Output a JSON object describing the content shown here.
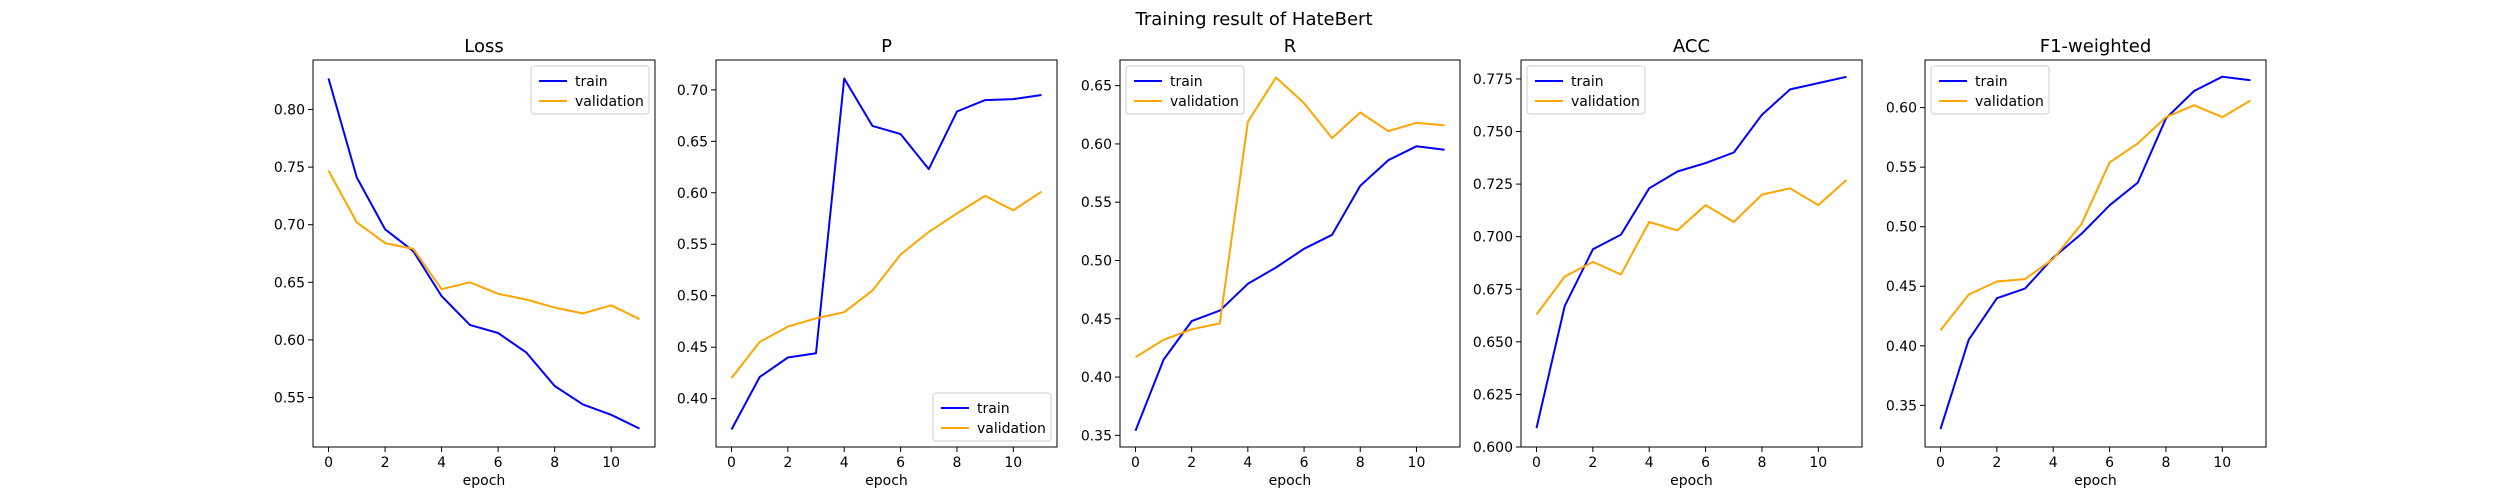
{
  "figure": {
    "title": "Training result of HateBert"
  },
  "colors": {
    "train": "#0000ff",
    "validation": "#ffa500"
  },
  "chart_data": [
    {
      "type": "line",
      "title": "Loss",
      "xlabel": "epoch",
      "ylabel": "",
      "x": [
        0,
        1,
        2,
        3,
        4,
        5,
        6,
        7,
        8,
        9,
        10,
        11
      ],
      "xlim": [
        -0.55,
        11.55
      ],
      "xticks": [
        "0",
        "2",
        "4",
        "6",
        "8",
        "10"
      ],
      "ylim": [
        0.507,
        0.843
      ],
      "yticks": [
        "0.55",
        "0.60",
        "0.65",
        "0.70",
        "0.75",
        "0.80"
      ],
      "legend": "top-right",
      "series": [
        {
          "name": "train",
          "values": [
            0.827,
            0.741,
            0.696,
            0.677,
            0.638,
            0.613,
            0.606,
            0.589,
            0.56,
            0.544,
            0.535,
            0.523
          ]
        },
        {
          "name": "validation",
          "values": [
            0.747,
            0.702,
            0.684,
            0.679,
            0.644,
            0.65,
            0.64,
            0.635,
            0.628,
            0.623,
            0.63,
            0.618
          ]
        }
      ]
    },
    {
      "type": "line",
      "title": "P",
      "xlabel": "epoch",
      "ylabel": "",
      "x": [
        0,
        1,
        2,
        3,
        4,
        5,
        6,
        7,
        8,
        9,
        10,
        11
      ],
      "xlim": [
        -0.55,
        11.55
      ],
      "xticks": [
        "0",
        "2",
        "4",
        "6",
        "8",
        "10"
      ],
      "ylim": [
        0.353,
        0.729
      ],
      "yticks": [
        "0.40",
        "0.45",
        "0.50",
        "0.55",
        "0.60",
        "0.65",
        "0.70"
      ],
      "legend": "bottom-right",
      "series": [
        {
          "name": "train",
          "values": [
            0.37,
            0.421,
            0.44,
            0.444,
            0.711,
            0.665,
            0.657,
            0.623,
            0.679,
            0.69,
            0.691,
            0.695
          ]
        },
        {
          "name": "validation",
          "values": [
            0.42,
            0.455,
            0.47,
            0.478,
            0.484,
            0.505,
            0.54,
            0.562,
            0.58,
            0.597,
            0.583,
            0.601
          ]
        }
      ]
    },
    {
      "type": "line",
      "title": "R",
      "xlabel": "epoch",
      "ylabel": "",
      "x": [
        0,
        1,
        2,
        3,
        4,
        5,
        6,
        7,
        8,
        9,
        10,
        11
      ],
      "xlim": [
        -0.55,
        11.55
      ],
      "xticks": [
        "0",
        "2",
        "4",
        "6",
        "8",
        "10"
      ],
      "ylim": [
        0.34,
        0.672
      ],
      "yticks": [
        "0.35",
        "0.40",
        "0.45",
        "0.50",
        "0.55",
        "0.60",
        "0.65"
      ],
      "legend": "top-left",
      "series": [
        {
          "name": "train",
          "values": [
            0.354,
            0.415,
            0.448,
            0.457,
            0.48,
            0.494,
            0.51,
            0.522,
            0.564,
            0.586,
            0.598,
            0.595
          ]
        },
        {
          "name": "validation",
          "values": [
            0.417,
            0.432,
            0.441,
            0.446,
            0.619,
            0.657,
            0.635,
            0.605,
            0.627,
            0.611,
            0.618,
            0.616
          ]
        }
      ]
    },
    {
      "type": "line",
      "title": "ACC",
      "xlabel": "epoch",
      "ylabel": "",
      "x": [
        0,
        1,
        2,
        3,
        4,
        5,
        6,
        7,
        8,
        9,
        10,
        11
      ],
      "xlim": [
        -0.55,
        11.55
      ],
      "xticks": [
        "0",
        "2",
        "4",
        "6",
        "8",
        "10"
      ],
      "ylim": [
        0.6,
        0.784
      ],
      "yticks": [
        "0.600",
        "0.625",
        "0.650",
        "0.675",
        "0.700",
        "0.725",
        "0.750",
        "0.775"
      ],
      "legend": "top-left",
      "series": [
        {
          "name": "train",
          "values": [
            0.609,
            0.667,
            0.694,
            0.701,
            0.723,
            0.731,
            0.735,
            0.74,
            0.758,
            0.77,
            0.773,
            0.776
          ]
        },
        {
          "name": "validation",
          "values": [
            0.663,
            0.681,
            0.688,
            0.682,
            0.707,
            0.703,
            0.715,
            0.707,
            0.72,
            0.723,
            0.715,
            0.727
          ]
        }
      ]
    },
    {
      "type": "line",
      "title": "F1-weighted",
      "xlabel": "epoch",
      "ylabel": "",
      "x": [
        0,
        1,
        2,
        3,
        4,
        5,
        6,
        7,
        8,
        9,
        10,
        11
      ],
      "xlim": [
        -0.55,
        11.55
      ],
      "xticks": [
        "0",
        "2",
        "4",
        "6",
        "8",
        "10"
      ],
      "ylim": [
        0.315,
        0.64
      ],
      "yticks": [
        "0.35",
        "0.40",
        "0.45",
        "0.50",
        "0.55",
        "0.60"
      ],
      "legend": "top-left",
      "series": [
        {
          "name": "train",
          "values": [
            0.33,
            0.405,
            0.44,
            0.448,
            0.474,
            0.494,
            0.518,
            0.537,
            0.591,
            0.614,
            0.626,
            0.623
          ]
        },
        {
          "name": "validation",
          "values": [
            0.413,
            0.443,
            0.454,
            0.456,
            0.473,
            0.502,
            0.554,
            0.57,
            0.592,
            0.602,
            0.592,
            0.606
          ]
        }
      ]
    }
  ]
}
